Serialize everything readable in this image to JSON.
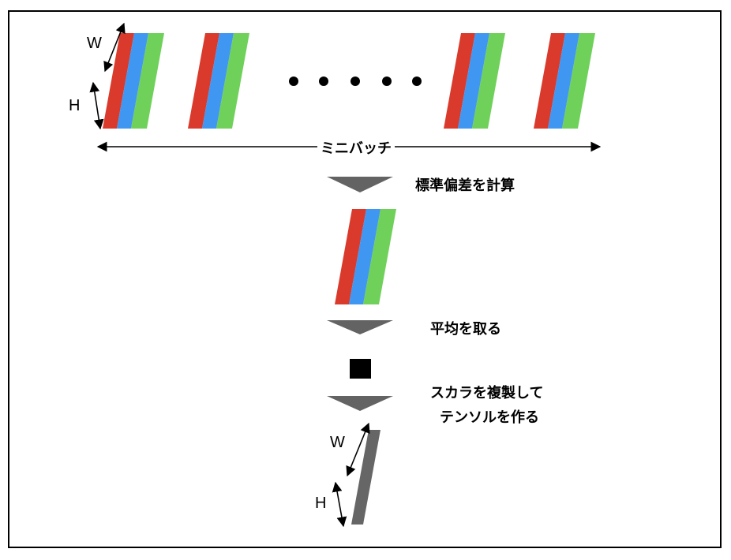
{
  "diagram": {
    "minibatch_label": "ミニバッチ",
    "dim_width": "W",
    "dim_height": "H",
    "step_std": "標準偏差を計算",
    "step_mean": "平均を取る",
    "step_replicate": [
      "スカラを複製して",
      "テンソルを作る"
    ]
  },
  "colors": {
    "red": "#d93a2b",
    "blue": "#3f97f2",
    "green": "#6fd15a",
    "arrow": "#636363",
    "output_plane": "#666666",
    "scalar": "#000000",
    "border": "#000000"
  }
}
